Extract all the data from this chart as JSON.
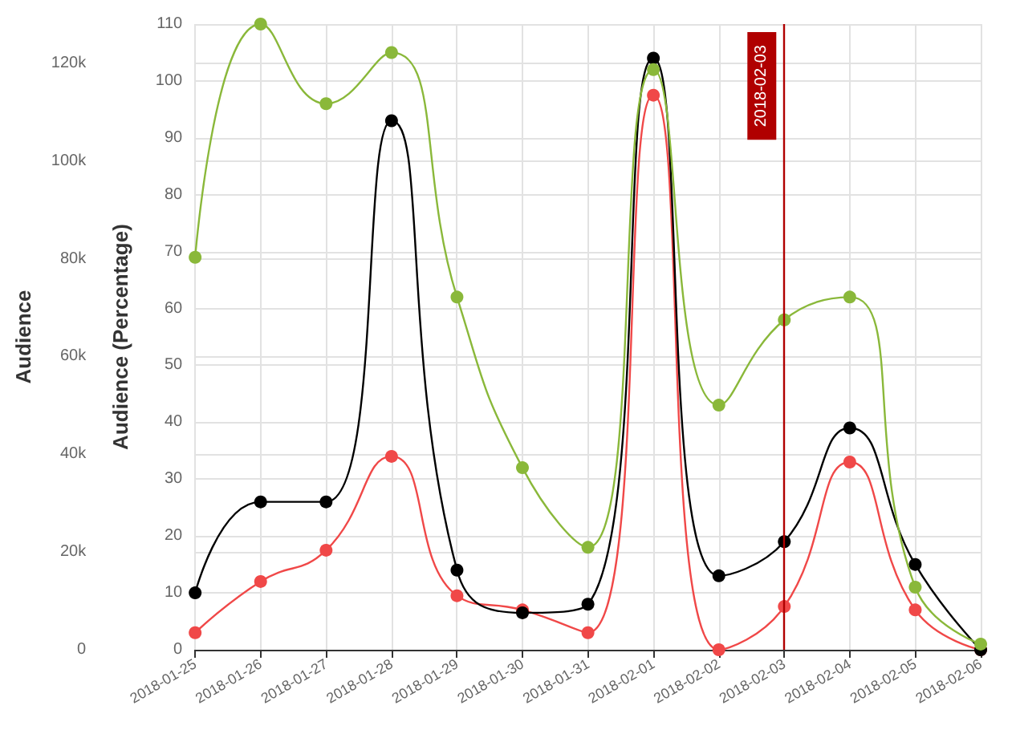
{
  "chart_data": {
    "type": "line",
    "ylabel": "Audience (Percentage)",
    "y2label": "Audience",
    "categories": [
      "2018-01-25",
      "2018-01-26",
      "2018-01-27",
      "2018-01-28",
      "2018-01-29",
      "2018-01-30",
      "2018-01-31",
      "2018-02-01",
      "2018-02-02",
      "2018-02-03",
      "2018-02-04",
      "2018-02-05",
      "2018-02-06"
    ],
    "series": [
      {
        "color": "#8ab83a",
        "values": [
          69,
          110,
          96,
          105,
          62,
          32,
          18,
          102,
          43,
          58,
          62,
          11,
          1
        ]
      },
      {
        "color": "#000000",
        "values": [
          10,
          26,
          26,
          93,
          14,
          6.5,
          8,
          104,
          13,
          19,
          39,
          15,
          0
        ]
      },
      {
        "color": "#f04848",
        "values": [
          3,
          12,
          17.5,
          34,
          9.5,
          7,
          3,
          97.5,
          0,
          7.6,
          33,
          7,
          0
        ]
      }
    ],
    "ylim": [
      0,
      110
    ],
    "yticks": [
      0,
      10,
      20,
      30,
      40,
      50,
      60,
      70,
      80,
      90,
      100,
      110
    ],
    "y2lim": [
      0,
      128000
    ],
    "y2ticks": [
      {
        "value": 0,
        "label": "0"
      },
      {
        "value": 20000,
        "label": "20k"
      },
      {
        "value": 40000,
        "label": "40k"
      },
      {
        "value": 60000,
        "label": "60k"
      },
      {
        "value": 80000,
        "label": "80k"
      },
      {
        "value": 100000,
        "label": "100k"
      },
      {
        "value": 120000,
        "label": "120k"
      }
    ],
    "ref_lines": [
      {
        "axis": "x",
        "value": "2018-02-03",
        "label": "2018-02-03",
        "color": "#b00000"
      }
    ],
    "grid": true,
    "marker": "circle",
    "line_style": "solid",
    "legend": false
  }
}
